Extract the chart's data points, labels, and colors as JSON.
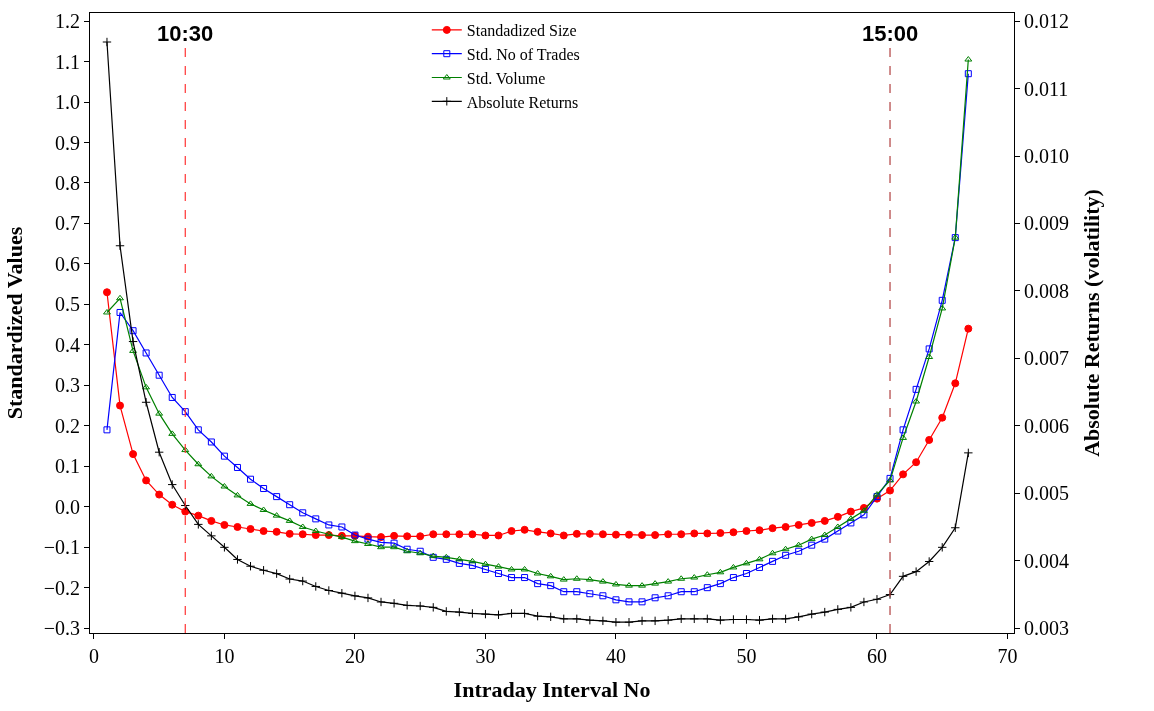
{
  "chart_data": {
    "type": "line",
    "xlabel": "Intraday Interval No",
    "ylabel": "Standardized Values",
    "y2label": "Absolute Returns (volatility)",
    "x": [
      1,
      2,
      3,
      4,
      5,
      6,
      7,
      8,
      9,
      10,
      11,
      12,
      13,
      14,
      15,
      16,
      17,
      18,
      19,
      20,
      21,
      22,
      23,
      24,
      25,
      26,
      27,
      28,
      29,
      30,
      31,
      32,
      33,
      34,
      35,
      36,
      37,
      38,
      39,
      40,
      41,
      42,
      43,
      44,
      45,
      46,
      47,
      48,
      49,
      50,
      51,
      52,
      53,
      54,
      55,
      56,
      57,
      58,
      59,
      60,
      61,
      62,
      63,
      64,
      65,
      66,
      67
    ],
    "series": [
      {
        "name": "Standadized Size",
        "color": "#ff0000",
        "marker": "circle",
        "values": [
          0.53,
          0.25,
          0.13,
          0.065,
          0.03,
          0.005,
          -0.012,
          -0.022,
          -0.035,
          -0.045,
          -0.05,
          -0.055,
          -0.06,
          -0.062,
          -0.067,
          -0.068,
          -0.07,
          -0.07,
          -0.072,
          -0.072,
          -0.074,
          -0.075,
          -0.072,
          -0.073,
          -0.073,
          -0.068,
          -0.068,
          -0.068,
          -0.068,
          -0.071,
          -0.071,
          -0.06,
          -0.057,
          -0.062,
          -0.066,
          -0.071,
          -0.067,
          -0.067,
          -0.068,
          -0.069,
          -0.069,
          -0.07,
          -0.07,
          -0.068,
          -0.068,
          -0.066,
          -0.066,
          -0.065,
          -0.063,
          -0.06,
          -0.058,
          -0.053,
          -0.05,
          -0.045,
          -0.04,
          -0.035,
          -0.025,
          -0.012,
          -0.003,
          0.02,
          0.04,
          0.08,
          0.11,
          0.165,
          0.22,
          0.305,
          0.44
        ]
      },
      {
        "name": "Std. No of Trades",
        "color": "#0000ff",
        "marker": "square",
        "values": [
          0.19,
          0.48,
          0.435,
          0.38,
          0.325,
          0.27,
          0.235,
          0.19,
          0.16,
          0.125,
          0.097,
          0.068,
          0.045,
          0.025,
          0.005,
          -0.015,
          -0.03,
          -0.045,
          -0.05,
          -0.07,
          -0.08,
          -0.088,
          -0.09,
          -0.105,
          -0.11,
          -0.125,
          -0.13,
          -0.14,
          -0.145,
          -0.155,
          -0.165,
          -0.175,
          -0.175,
          -0.19,
          -0.195,
          -0.21,
          -0.21,
          -0.215,
          -0.22,
          -0.23,
          -0.235,
          -0.235,
          -0.225,
          -0.22,
          -0.21,
          -0.21,
          -0.2,
          -0.19,
          -0.175,
          -0.165,
          -0.15,
          -0.135,
          -0.12,
          -0.11,
          -0.095,
          -0.08,
          -0.06,
          -0.04,
          -0.02,
          0.025,
          0.07,
          0.19,
          0.29,
          0.39,
          0.51,
          0.665,
          1.07
        ]
      },
      {
        "name": "Std. Volume",
        "color": "#008000",
        "marker": "triangle",
        "values": [
          0.48,
          0.515,
          0.385,
          0.295,
          0.23,
          0.18,
          0.14,
          0.105,
          0.075,
          0.05,
          0.028,
          0.007,
          -0.008,
          -0.022,
          -0.035,
          -0.05,
          -0.06,
          -0.068,
          -0.075,
          -0.085,
          -0.092,
          -0.1,
          -0.1,
          -0.11,
          -0.115,
          -0.122,
          -0.125,
          -0.13,
          -0.135,
          -0.142,
          -0.148,
          -0.155,
          -0.155,
          -0.165,
          -0.172,
          -0.18,
          -0.178,
          -0.18,
          -0.185,
          -0.192,
          -0.195,
          -0.195,
          -0.19,
          -0.185,
          -0.178,
          -0.175,
          -0.168,
          -0.162,
          -0.15,
          -0.14,
          -0.13,
          -0.115,
          -0.105,
          -0.095,
          -0.08,
          -0.07,
          -0.05,
          -0.03,
          -0.01,
          0.03,
          0.065,
          0.17,
          0.26,
          0.37,
          0.49,
          0.665,
          1.105
        ]
      },
      {
        "name": "Absolute Returns",
        "color": "#000000",
        "marker": "cross",
        "axis": "y2",
        "values": [
          0.01169,
          0.00867,
          0.00725,
          0.00635,
          0.00561,
          0.00513,
          0.00482,
          0.00454,
          0.00437,
          0.0042,
          0.00402,
          0.00392,
          0.00386,
          0.00381,
          0.00373,
          0.0037,
          0.00362,
          0.00356,
          0.00352,
          0.00348,
          0.00345,
          0.00339,
          0.00337,
          0.00334,
          0.00333,
          0.00331,
          0.00325,
          0.00324,
          0.00322,
          0.00321,
          0.0032,
          0.00322,
          0.00322,
          0.00318,
          0.00317,
          0.00314,
          0.00314,
          0.00312,
          0.00311,
          0.00309,
          0.00309,
          0.00311,
          0.00311,
          0.00312,
          0.00314,
          0.00314,
          0.00314,
          0.00312,
          0.00313,
          0.00313,
          0.00312,
          0.00314,
          0.00314,
          0.00317,
          0.00321,
          0.00324,
          0.00328,
          0.00331,
          0.00339,
          0.00343,
          0.0035,
          0.00377,
          0.00384,
          0.00399,
          0.0042,
          0.00449,
          0.0056
        ]
      }
    ],
    "xlim": [
      -0.3,
      70.5
    ],
    "xticks": [
      0,
      10,
      20,
      30,
      40,
      50,
      60,
      70
    ],
    "ylim": [
      -0.312,
      1.22
    ],
    "yticks": [
      {
        "value": -0.3,
        "label": "−0.3"
      },
      {
        "value": -0.2,
        "label": "−0.2"
      },
      {
        "value": -0.1,
        "label": "−0.1"
      },
      {
        "value": 0,
        "label": "0.0"
      },
      {
        "value": 0.1,
        "label": "0.1"
      },
      {
        "value": 0.2,
        "label": "0.2"
      },
      {
        "value": 0.3,
        "label": "0.3"
      },
      {
        "value": 0.4,
        "label": "0.4"
      },
      {
        "value": 0.5,
        "label": "0.5"
      },
      {
        "value": 0.6,
        "label": "0.6"
      },
      {
        "value": 0.7,
        "label": "0.7"
      },
      {
        "value": 0.8,
        "label": "0.8"
      },
      {
        "value": 0.9,
        "label": "0.9"
      },
      {
        "value": 1.0,
        "label": "1.0"
      },
      {
        "value": 1.1,
        "label": "1.1"
      },
      {
        "value": 1.2,
        "label": "1.2"
      }
    ],
    "y2lim": [
      0.00293,
      0.01212
    ],
    "y2ticks": [
      0.003,
      0.004,
      0.005,
      0.006,
      0.007,
      0.008,
      0.009,
      {
        "value": 0.01,
        "label": "0.010"
      },
      0.011,
      0.012
    ],
    "ref_lines": [
      {
        "axis": "x",
        "value": 7,
        "color": "#ff3333",
        "line_style": "dashed"
      },
      {
        "axis": "x",
        "value": 61,
        "color": "#b04040",
        "line_style": "dashed"
      }
    ],
    "annotations": [
      {
        "text": "10:30",
        "x": 7,
        "y": 1.17
      },
      {
        "text": "15:00",
        "x": 61,
        "y": 1.17
      }
    ],
    "legend": "top",
    "line_style": "solid"
  }
}
